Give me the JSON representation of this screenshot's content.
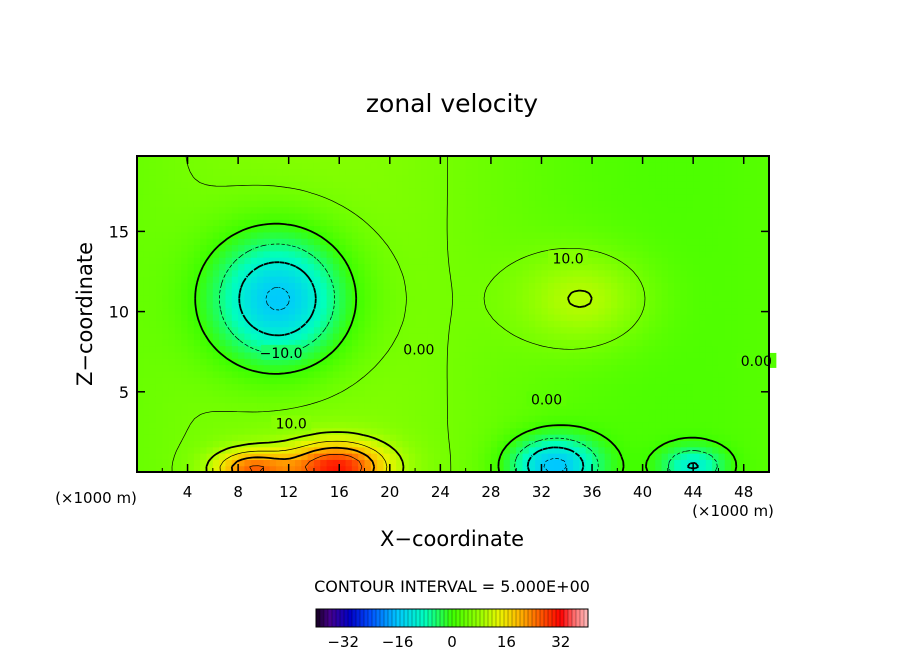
{
  "chart_data": {
    "type": "heatmap",
    "title": "zonal velocity",
    "xlabel": "X−coordinate",
    "ylabel": "Z−coordinate",
    "x_unit_left": "(×1000 m)",
    "x_unit_right": "(×1000 m)",
    "xlim": [
      0,
      50
    ],
    "ylim": [
      0,
      19.7
    ],
    "x_ticks": [
      "4",
      "8",
      "12",
      "16",
      "20",
      "24",
      "28",
      "32",
      "36",
      "40",
      "44",
      "48"
    ],
    "y_ticks": [
      "5",
      "10",
      "15"
    ],
    "contour_labels": [
      {
        "text": "−10.0",
        "x": 11.4,
        "y": 7.3
      },
      {
        "text": "10.0",
        "x": 12.2,
        "y": 2.9
      },
      {
        "text": "10.0",
        "x": 34.1,
        "y": 13.2
      },
      {
        "text": "0.00",
        "x": 32.4,
        "y": 4.4
      },
      {
        "text": "0.00",
        "x": 22.3,
        "y": 7.5
      },
      {
        "text": "0.00",
        "x": 49.0,
        "y": 6.8
      }
    ],
    "contour_interval_text": "CONTOUR INTERVAL = 5.000E+00",
    "colorbar": {
      "min": -40,
      "max": 40,
      "ticks": [
        "−32",
        "−16",
        "0",
        "16",
        "32"
      ]
    },
    "features": [
      {
        "type": "min",
        "x": 11.2,
        "y": 10.8,
        "value": -18
      },
      {
        "type": "max",
        "x": 35.4,
        "y": 10.8,
        "value": 12
      },
      {
        "type": "max",
        "x": 15.8,
        "y": 0.3,
        "value": 28
      },
      {
        "type": "max",
        "x": 9.0,
        "y": 0.2,
        "value": 22
      },
      {
        "type": "min",
        "x": 33.0,
        "y": 0.4,
        "value": -15
      },
      {
        "type": "min",
        "x": 44.0,
        "y": 0.4,
        "value": -8
      }
    ]
  }
}
